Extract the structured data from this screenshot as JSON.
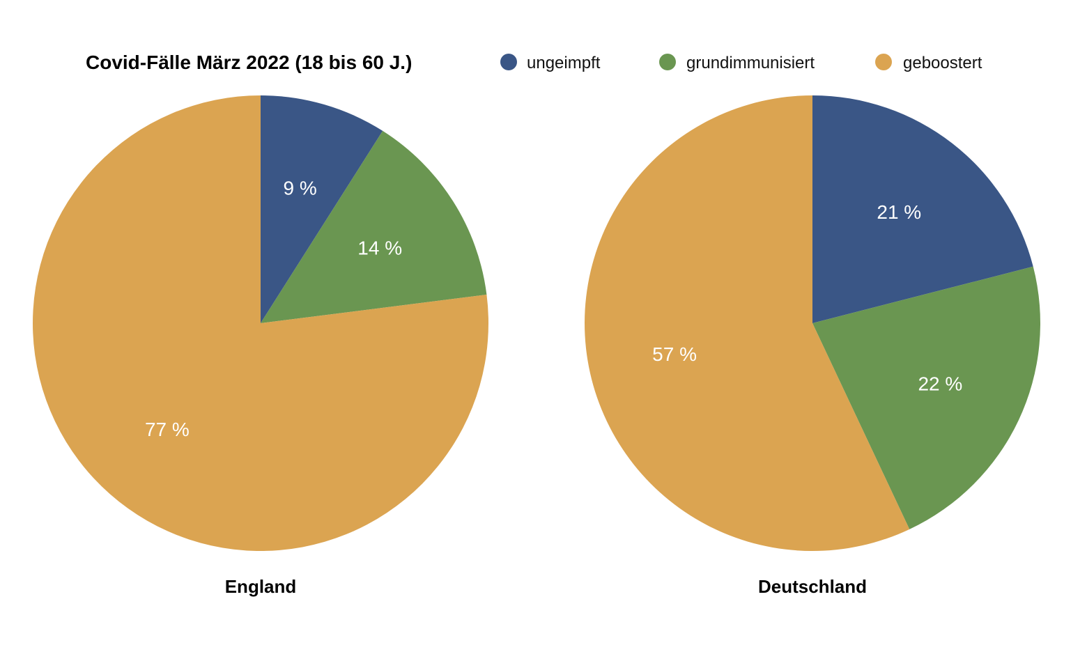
{
  "chart_data": {
    "type": "pie",
    "title": "Covid-Fälle März 2022 (18 bis 60 J.)",
    "legend_position": "top-right",
    "series_names": [
      "ungeimpft",
      "grundimmunisiert",
      "geboostert"
    ],
    "colors": [
      "#3a5686",
      "#6a9651",
      "#dba451"
    ],
    "label_color": "#ffffff",
    "pies": [
      {
        "name": "England",
        "values": [
          9,
          14,
          77
        ],
        "labels": [
          "9 %",
          "14 %",
          "77 %"
        ]
      },
      {
        "name": "Deutschland",
        "values": [
          21,
          22,
          57
        ],
        "labels": [
          "21 %",
          "22 %",
          "57 %"
        ]
      }
    ]
  }
}
